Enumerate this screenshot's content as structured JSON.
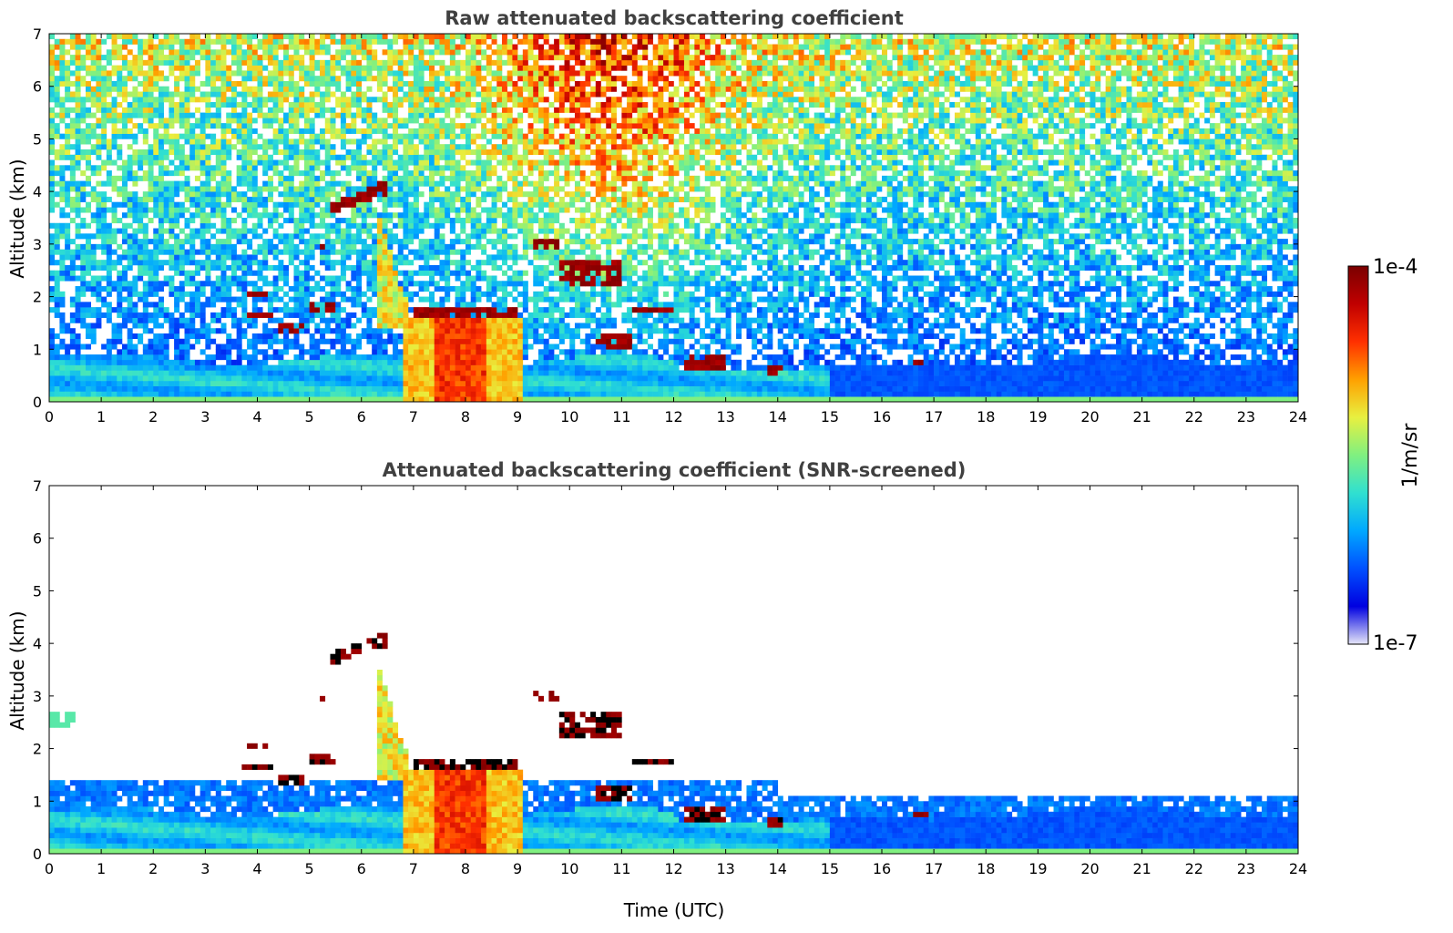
{
  "chart_data": [
    {
      "type": "heatmap",
      "title": "Raw attenuated backscattering coefficient",
      "xlabel": "",
      "ylabel": "Altitude (km)",
      "xlim": [
        0,
        24
      ],
      "ylim": [
        0,
        7
      ],
      "x_ticks": [
        "0",
        "1",
        "2",
        "3",
        "4",
        "5",
        "6",
        "7",
        "8",
        "9",
        "10",
        "11",
        "12",
        "13",
        "14",
        "15",
        "16",
        "17",
        "18",
        "19",
        "20",
        "21",
        "22",
        "23",
        "24"
      ],
      "y_ticks": [
        "0",
        "1",
        "2",
        "3",
        "4",
        "5",
        "6",
        "7"
      ],
      "screened": false,
      "features": [
        {
          "name": "boundary-layer aerosol",
          "t_start": 0,
          "t_end": 24,
          "alt_top_km": 0.8
        },
        {
          "name": "rain shaft",
          "t_start": 6.8,
          "t_end": 9.1,
          "alt_top_km": 2.0
        },
        {
          "name": "cloud layer",
          "t_start": 5.4,
          "t_end": 6.5,
          "alt_km": 3.9
        },
        {
          "name": "cloud layer",
          "t_start": 7.0,
          "t_end": 9.0,
          "alt_km": 1.7
        },
        {
          "name": "cloud layer",
          "t_start": 11.2,
          "t_end": 12.0,
          "alt_km": 1.75
        },
        {
          "name": "cloud layer",
          "t_start": 12.2,
          "t_end": 13.0,
          "alt_km": 0.7
        }
      ]
    },
    {
      "type": "heatmap",
      "title": "Attenuated backscattering coefficient (SNR-screened)",
      "xlabel": "Time (UTC)",
      "ylabel": "Altitude (km)",
      "xlim": [
        0,
        24
      ],
      "ylim": [
        0,
        7
      ],
      "x_ticks": [
        "0",
        "1",
        "2",
        "3",
        "4",
        "5",
        "6",
        "7",
        "8",
        "9",
        "10",
        "11",
        "12",
        "13",
        "14",
        "15",
        "16",
        "17",
        "18",
        "19",
        "20",
        "21",
        "22",
        "23",
        "24"
      ],
      "y_ticks": [
        "0",
        "1",
        "2",
        "3",
        "4",
        "5",
        "6",
        "7"
      ],
      "screened": true
    }
  ],
  "colorbar": {
    "label": "1/m/sr",
    "max_label": "1e-4",
    "min_label": "1e-7",
    "scale": "log",
    "colormap": [
      "#e6e6f8",
      "#0000e0",
      "#0050ff",
      "#00a8ff",
      "#30e0d0",
      "#80f080",
      "#e8f040",
      "#ffa000",
      "#ff3000",
      "#c00000",
      "#7a0000"
    ]
  }
}
